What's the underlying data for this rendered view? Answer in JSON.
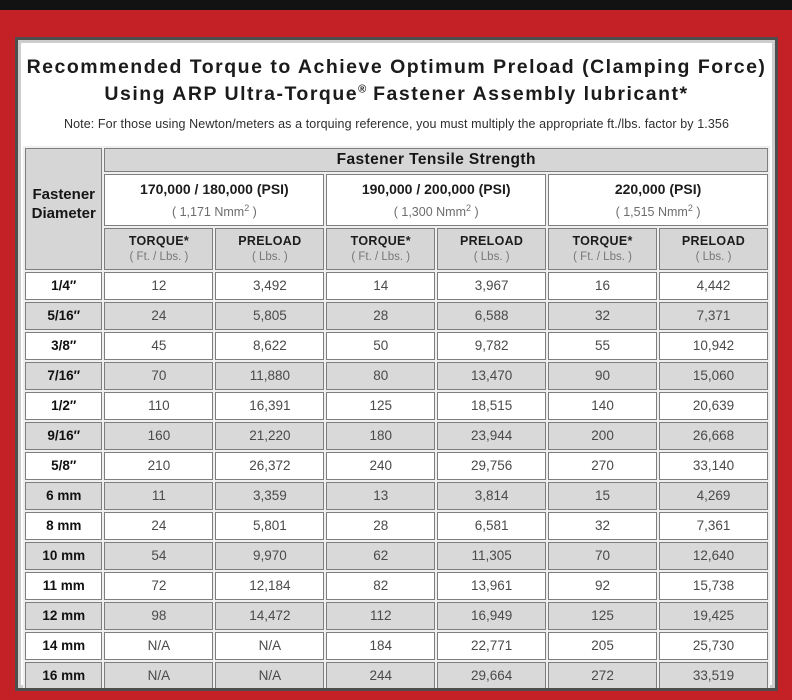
{
  "frame": {
    "accent_red": "#C42127",
    "top_bar_color": "#121212"
  },
  "title": {
    "line1": "Recommended Torque to Achieve Optimum Preload (Clamping Force)",
    "line2_prefix": "Using ARP Ultra-Torque",
    "line2_reg": "®",
    "line2_suffix": " Fastener Assembly lubricant*"
  },
  "note": "Note: For those using Newton/meters as a torquing reference, you must multiply the appropriate ft./lbs. factor by 1.356",
  "table": {
    "corner_line1": "Fastener",
    "corner_line2": "Diameter",
    "tensile_header": "Fastener Tensile Strength",
    "strength_groups": [
      {
        "psi": "170,000 / 180,000 (PSI)",
        "nmm_base": "( 1,171 Nmm",
        "nmm_exp": "2",
        "nmm_close": " )"
      },
      {
        "psi": "190,000 / 200,000 (PSI)",
        "nmm_base": "( 1,300 Nmm",
        "nmm_exp": "2",
        "nmm_close": " )"
      },
      {
        "psi": "220,000 (PSI)",
        "nmm_base": "( 1,515 Nmm",
        "nmm_exp": "2",
        "nmm_close": " )"
      }
    ],
    "col_headers": {
      "torque_label": "TORQUE*",
      "torque_sub": "( Ft. / Lbs. )",
      "preload_label": "PRELOAD",
      "preload_sub": "( Lbs. )"
    },
    "rows": [
      {
        "diameter": "1/4″",
        "values": [
          "12",
          "3,492",
          "14",
          "3,967",
          "16",
          "4,442"
        ]
      },
      {
        "diameter": "5/16″",
        "values": [
          "24",
          "5,805",
          "28",
          "6,588",
          "32",
          "7,371"
        ]
      },
      {
        "diameter": "3/8″",
        "values": [
          "45",
          "8,622",
          "50",
          "9,782",
          "55",
          "10,942"
        ]
      },
      {
        "diameter": "7/16″",
        "values": [
          "70",
          "11,880",
          "80",
          "13,470",
          "90",
          "15,060"
        ]
      },
      {
        "diameter": "1/2″",
        "values": [
          "110",
          "16,391",
          "125",
          "18,515",
          "140",
          "20,639"
        ]
      },
      {
        "diameter": "9/16″",
        "values": [
          "160",
          "21,220",
          "180",
          "23,944",
          "200",
          "26,668"
        ]
      },
      {
        "diameter": "5/8″",
        "values": [
          "210",
          "26,372",
          "240",
          "29,756",
          "270",
          "33,140"
        ]
      },
      {
        "diameter": "6 mm",
        "values": [
          "11",
          "3,359",
          "13",
          "3,814",
          "15",
          "4,269"
        ]
      },
      {
        "diameter": "8 mm",
        "values": [
          "24",
          "5,801",
          "28",
          "6,581",
          "32",
          "7,361"
        ]
      },
      {
        "diameter": "10 mm",
        "values": [
          "54",
          "9,970",
          "62",
          "11,305",
          "70",
          "12,640"
        ]
      },
      {
        "diameter": "11 mm",
        "values": [
          "72",
          "12,184",
          "82",
          "13,961",
          "92",
          "15,738"
        ]
      },
      {
        "diameter": "12 mm",
        "values": [
          "98",
          "14,472",
          "112",
          "16,949",
          "125",
          "19,425"
        ]
      },
      {
        "diameter": "14 mm",
        "values": [
          "N/A",
          "N/A",
          "184",
          "22,771",
          "205",
          "25,730"
        ]
      },
      {
        "diameter": "16 mm",
        "values": [
          "N/A",
          "N/A",
          "244",
          "29,664",
          "272",
          "33,519"
        ]
      }
    ]
  }
}
